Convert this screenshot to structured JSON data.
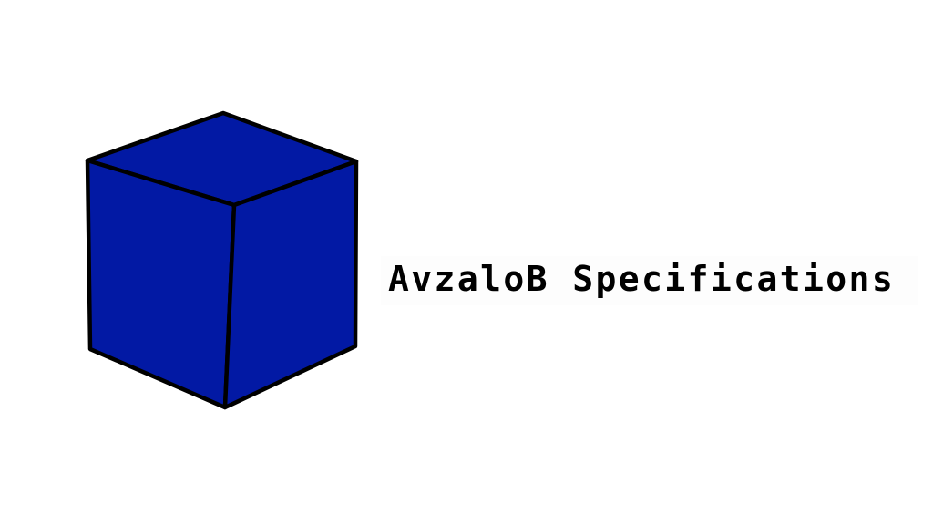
{
  "logo": {
    "name": "cube-logo-icon",
    "face_color": "#0219a4",
    "edge_color": "#000000"
  },
  "title": {
    "text": "AvzaloB Specifications"
  }
}
